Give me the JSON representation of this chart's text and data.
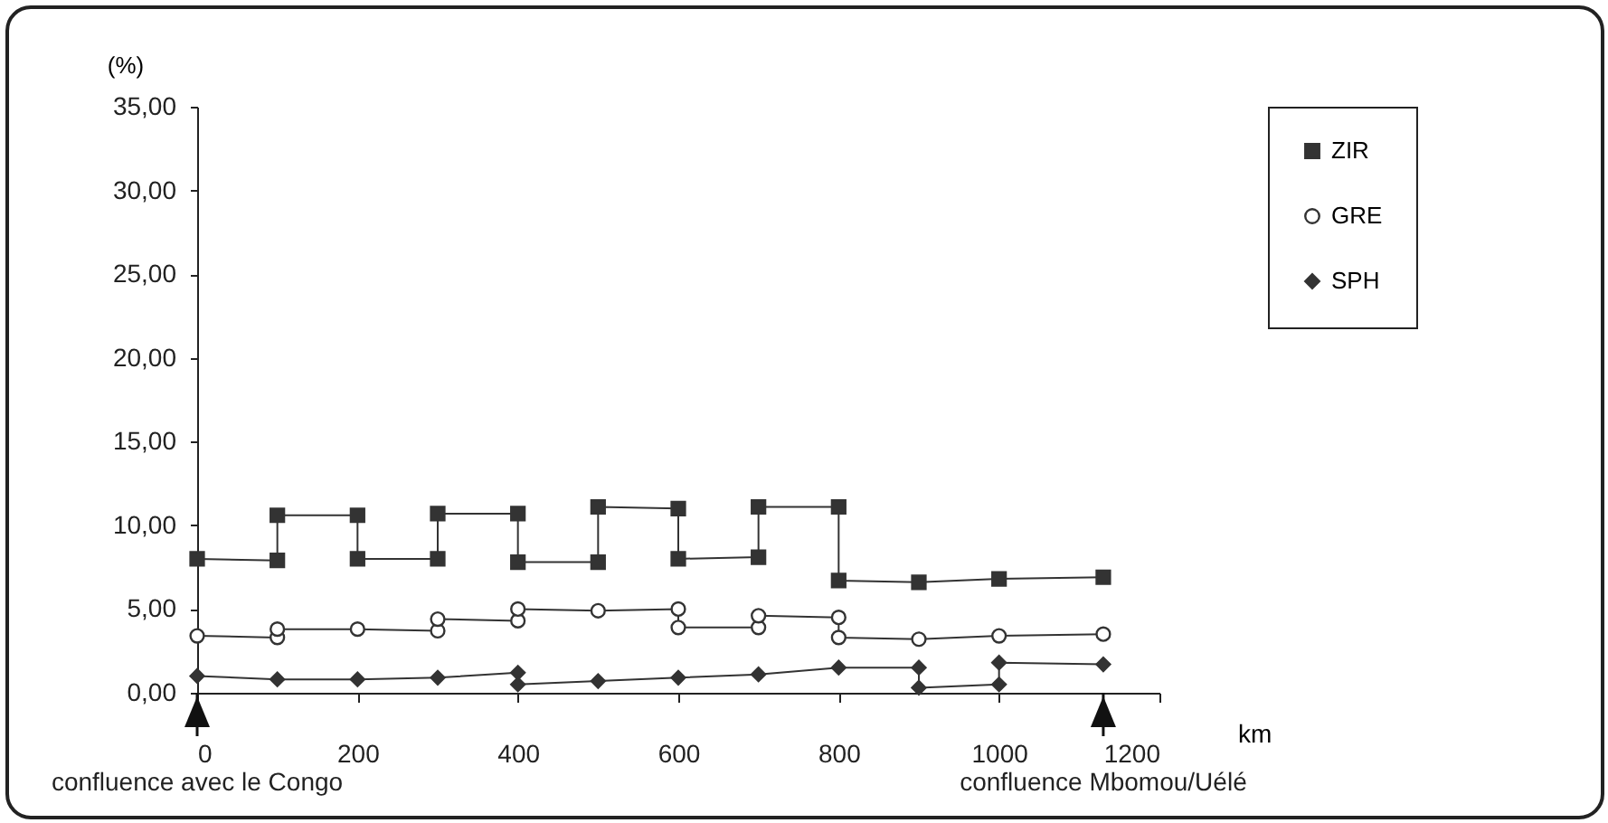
{
  "chart_data": {
    "type": "line",
    "xlabel": "km",
    "ylabel": "(%)",
    "xlim": [
      0,
      1200
    ],
    "xticks": [
      0,
      200,
      400,
      600,
      800,
      1000,
      1200
    ],
    "ylim": [
      0,
      35
    ],
    "yticks": [
      {
        "value": 0,
        "label": "0,00"
      },
      {
        "value": 5,
        "label": "5,00"
      },
      {
        "value": 10,
        "label": "10,00"
      },
      {
        "value": 15,
        "label": "15,00"
      },
      {
        "value": 20,
        "label": "20,00"
      },
      {
        "value": 25,
        "label": "25,00"
      },
      {
        "value": 30,
        "label": "30,00"
      },
      {
        "value": 35,
        "label": "35,00"
      }
    ],
    "grid": false,
    "legend": "right",
    "line_style": "solid",
    "series": [
      {
        "name": "ZIR",
        "color": "#333333",
        "marker": "square",
        "x": [
          0,
          100,
          100,
          200,
          200,
          300,
          300,
          400,
          400,
          500,
          500,
          600,
          600,
          700,
          700,
          800,
          800,
          900,
          1000,
          1130
        ],
        "values": [
          8.0,
          7.9,
          10.6,
          10.6,
          8.0,
          8.0,
          10.7,
          10.7,
          7.8,
          7.8,
          11.1,
          11.0,
          8.0,
          8.1,
          11.1,
          11.1,
          6.7,
          6.6,
          6.8,
          6.9
        ]
      },
      {
        "name": "GRE",
        "color": "#333333",
        "marker": "circle",
        "x": [
          0,
          100,
          100,
          200,
          300,
          300,
          400,
          400,
          500,
          600,
          600,
          700,
          700,
          800,
          800,
          900,
          1000,
          1130
        ],
        "values": [
          3.4,
          3.3,
          3.8,
          3.8,
          3.7,
          4.4,
          4.3,
          5.0,
          4.9,
          5.0,
          3.9,
          3.9,
          4.6,
          4.5,
          3.3,
          3.2,
          3.4,
          3.5
        ]
      },
      {
        "name": "SPH",
        "color": "#333333",
        "marker": "diamond",
        "x": [
          0,
          100,
          200,
          300,
          400,
          400,
          500,
          600,
          700,
          800,
          900,
          900,
          1000,
          1000,
          1130
        ],
        "values": [
          1.0,
          0.8,
          0.8,
          0.9,
          1.2,
          0.5,
          0.7,
          0.9,
          1.1,
          1.5,
          1.5,
          0.3,
          0.5,
          1.8,
          1.7
        ]
      }
    ],
    "ref_lines": [
      {
        "axis": "x",
        "value": 0,
        "label": "confluence avec le Congo"
      },
      {
        "axis": "x",
        "value": 1130,
        "label": "confluence Mbomou/Uélé"
      }
    ]
  }
}
